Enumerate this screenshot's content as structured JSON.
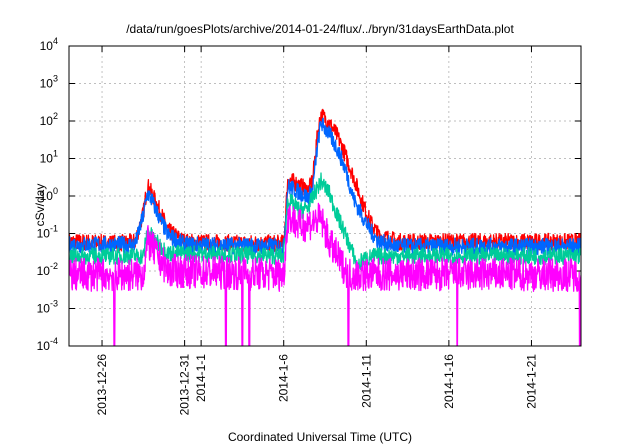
{
  "chart_data": {
    "type": "line",
    "title": "/data/run/goesPlots/archive/2014-01-24/flux/../bryn/31daysEarthData.plot",
    "xlabel": "Coordinated Universal Time (UTC)",
    "ylabel": "cSv/day",
    "yscale": "log",
    "ylim": [
      0.0001,
      10000
    ],
    "xlim": [
      "2013-12-24",
      "2014-01-24"
    ],
    "grid": true,
    "legend": "none",
    "yticks": [
      {
        "value": 0.0001,
        "base": "10",
        "exp": "-4"
      },
      {
        "value": 0.001,
        "base": "10",
        "exp": "-3"
      },
      {
        "value": 0.01,
        "base": "10",
        "exp": "-2"
      },
      {
        "value": 0.1,
        "base": "10",
        "exp": "-1"
      },
      {
        "value": 1,
        "base": "10",
        "exp": "0"
      },
      {
        "value": 10,
        "base": "10",
        "exp": "1"
      },
      {
        "value": 100,
        "base": "10",
        "exp": "2"
      },
      {
        "value": 1000,
        "base": "10",
        "exp": "3"
      },
      {
        "value": 10000,
        "base": "10",
        "exp": "4"
      }
    ],
    "xticks": [
      {
        "date": "2013-12-26",
        "label": "2013-12-26"
      },
      {
        "date": "2013-12-31",
        "label": "2013-12-31"
      },
      {
        "date": "2014-01-01",
        "label": "2014-1-1"
      },
      {
        "date": "2014-01-06",
        "label": "2014-1-6"
      },
      {
        "date": "2014-01-11",
        "label": "2014-1-11"
      },
      {
        "date": "2014-01-16",
        "label": "2014-1-16"
      },
      {
        "date": "2014-01-21",
        "label": "2014-1-21"
      }
    ],
    "series": [
      {
        "color": "#ff0000",
        "points": [
          [
            "2013-12-24T00:00",
            0.06
          ],
          [
            "2013-12-27T00:00",
            0.055
          ],
          [
            "2013-12-28T00:00",
            0.06
          ],
          [
            "2013-12-28T12:00",
            0.35
          ],
          [
            "2013-12-28T18:00",
            1.9
          ],
          [
            "2013-12-29T00:00",
            1.2
          ],
          [
            "2013-12-29T12:00",
            0.4
          ],
          [
            "2013-12-30T00:00",
            0.12
          ],
          [
            "2013-12-31T00:00",
            0.06
          ],
          [
            "2014-01-03T00:00",
            0.055
          ],
          [
            "2014-01-06T00:00",
            0.055
          ],
          [
            "2014-01-06T06:00",
            2.8
          ],
          [
            "2014-01-06T18:00",
            2.2
          ],
          [
            "2014-01-07T12:00",
            1.4
          ],
          [
            "2014-01-07T18:00",
            2.8
          ],
          [
            "2014-01-08T00:00",
            30
          ],
          [
            "2014-01-08T06:00",
            150
          ],
          [
            "2014-01-08T18:00",
            90
          ],
          [
            "2014-01-09T06:00",
            40
          ],
          [
            "2014-01-09T18:00",
            12
          ],
          [
            "2014-01-10T06:00",
            3
          ],
          [
            "2014-01-10T18:00",
            0.7
          ],
          [
            "2014-01-11T06:00",
            0.2
          ],
          [
            "2014-01-11T18:00",
            0.09
          ],
          [
            "2014-01-13T00:00",
            0.06
          ],
          [
            "2014-01-24T00:00",
            0.06
          ]
        ]
      },
      {
        "color": "#0066ff",
        "points": [
          [
            "2013-12-24T00:00",
            0.05
          ],
          [
            "2013-12-28T00:00",
            0.05
          ],
          [
            "2013-12-28T12:00",
            0.3
          ],
          [
            "2013-12-28T18:00",
            1.2
          ],
          [
            "2013-12-29T00:00",
            0.8
          ],
          [
            "2013-12-29T12:00",
            0.25
          ],
          [
            "2013-12-30T00:00",
            0.09
          ],
          [
            "2013-12-31T00:00",
            0.05
          ],
          [
            "2014-01-06T00:00",
            0.045
          ],
          [
            "2014-01-06T06:00",
            1.8
          ],
          [
            "2014-01-06T18:00",
            1.4
          ],
          [
            "2014-01-07T12:00",
            0.9
          ],
          [
            "2014-01-07T18:00",
            1.5
          ],
          [
            "2014-01-08T00:00",
            15
          ],
          [
            "2014-01-08T06:00",
            90
          ],
          [
            "2014-01-08T18:00",
            45
          ],
          [
            "2014-01-09T06:00",
            18
          ],
          [
            "2014-01-09T18:00",
            5
          ],
          [
            "2014-01-10T06:00",
            0.8
          ],
          [
            "2014-01-10T18:00",
            0.3
          ],
          [
            "2014-01-11T06:00",
            0.12
          ],
          [
            "2014-01-11T18:00",
            0.06
          ],
          [
            "2014-01-13T00:00",
            0.045
          ],
          [
            "2014-01-24T00:00",
            0.045
          ]
        ]
      },
      {
        "color": "#00cc99",
        "points": [
          [
            "2013-12-24T00:00",
            0.025
          ],
          [
            "2013-12-28T12:00",
            0.025
          ],
          [
            "2013-12-28T18:00",
            0.12
          ],
          [
            "2013-12-29T06:00",
            0.06
          ],
          [
            "2013-12-30T00:00",
            0.03
          ],
          [
            "2014-01-06T00:00",
            0.025
          ],
          [
            "2014-01-06T06:00",
            0.8
          ],
          [
            "2014-01-07T00:00",
            0.4
          ],
          [
            "2014-01-07T12:00",
            0.5
          ],
          [
            "2014-01-07T18:00",
            0.9
          ],
          [
            "2014-01-08T06:00",
            2.5
          ],
          [
            "2014-01-08T18:00",
            1.2
          ],
          [
            "2014-01-09T06:00",
            0.3
          ],
          [
            "2014-01-09T18:00",
            0.09
          ],
          [
            "2014-01-10T06:00",
            0.025
          ],
          [
            "2014-01-10T12:00",
            0.012
          ],
          [
            "2014-01-10T18:00",
            0.02
          ],
          [
            "2014-01-11T12:00",
            0.025
          ],
          [
            "2014-01-24T00:00",
            0.025
          ]
        ]
      },
      {
        "color": "#ff00ff",
        "points": [
          [
            "2013-12-24T00:00",
            0.008
          ],
          [
            "2013-12-28T12:00",
            0.008
          ],
          [
            "2013-12-28T18:00",
            0.06
          ],
          [
            "2013-12-29T06:00",
            0.03
          ],
          [
            "2013-12-30T00:00",
            0.01
          ],
          [
            "2014-01-06T00:00",
            0.008
          ],
          [
            "2014-01-06T06:00",
            0.3
          ],
          [
            "2014-01-07T00:00",
            0.15
          ],
          [
            "2014-01-07T18:00",
            0.2
          ],
          [
            "2014-01-08T06:00",
            0.25
          ],
          [
            "2014-01-08T18:00",
            0.06
          ],
          [
            "2014-01-09T12:00",
            0.015
          ],
          [
            "2014-01-10T00:00",
            0.008
          ],
          [
            "2014-01-24T00:00",
            0.008
          ]
        ]
      }
    ],
    "dropouts": [
      "2013-12-26T18:00",
      "2014-01-02T12:00",
      "2014-01-03T12:00",
      "2014-01-03T22:00",
      "2014-01-09T22:00",
      "2014-01-16T12:00",
      "2014-01-23T22:00"
    ]
  }
}
